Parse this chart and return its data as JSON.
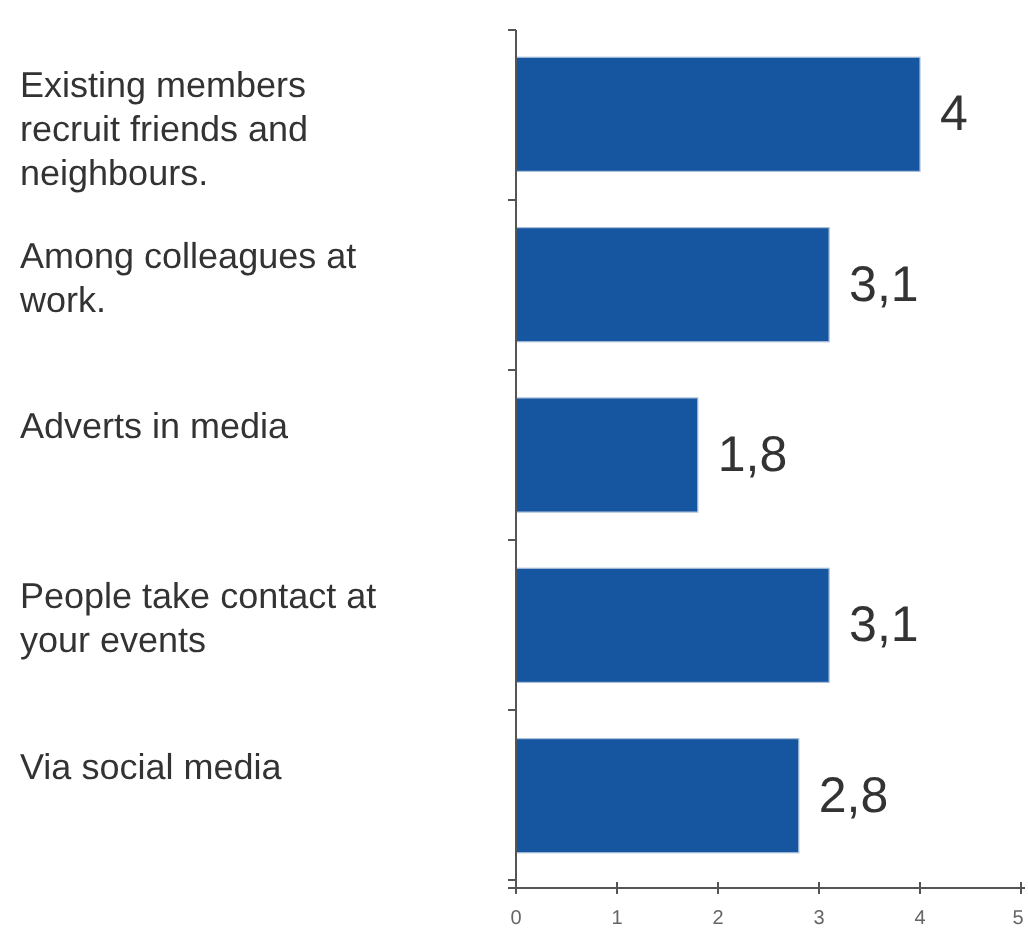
{
  "chart_data": {
    "type": "bar",
    "orientation": "horizontal",
    "categories": [
      "Existing members recruit friends and neighbours.",
      "Among colleagues at work.",
      "Adverts in media",
      "People take contact at your events",
      "Via social media"
    ],
    "values": [
      4,
      3.1,
      1.8,
      3.1,
      2.8
    ],
    "value_labels": [
      "4",
      "3,1",
      "1,8",
      "3,1",
      "2,8"
    ],
    "color": "#1656a0",
    "xlim": [
      0,
      5
    ],
    "xticks": [
      0,
      1,
      2,
      3,
      4,
      5
    ]
  }
}
